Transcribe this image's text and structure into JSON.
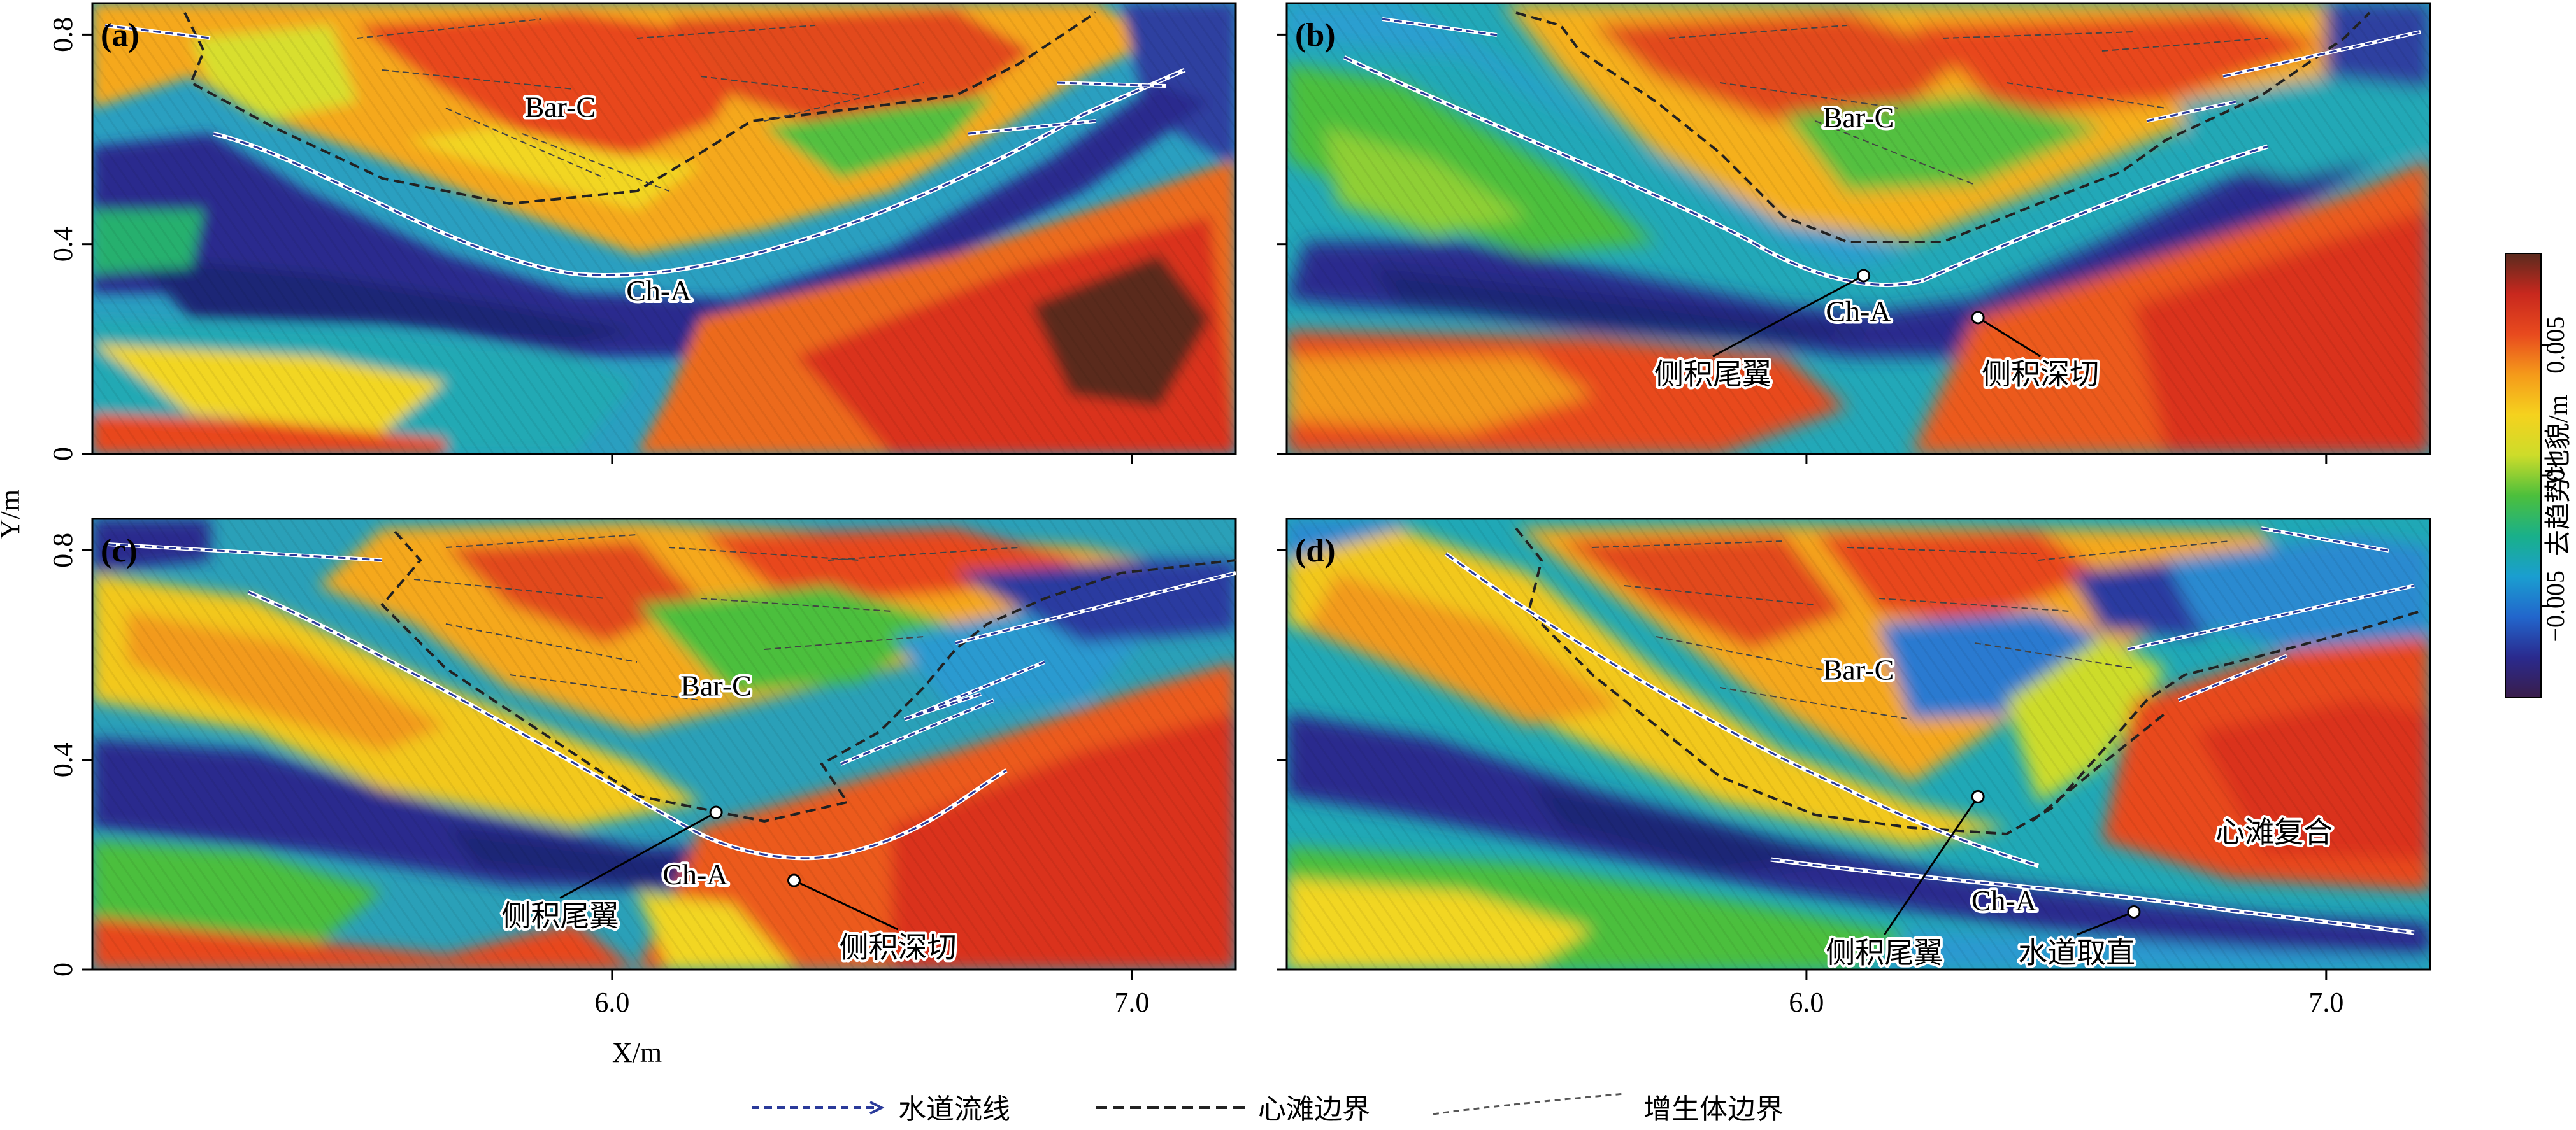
{
  "figure": {
    "x_axis_label": "X/m",
    "y_axis_label": "Y/m",
    "colorbar": {
      "label": "去趋势地貌/m",
      "ticks": [
        "0.005",
        "0",
        "−0.005"
      ],
      "tick_values": [
        0.005,
        0,
        -0.005
      ],
      "range": [
        -0.0085,
        0.0085
      ],
      "colors": [
        "#3a1d4a",
        "#2a2a8e",
        "#2266cc",
        "#1a9ed0",
        "#19b08a",
        "#4cbf3c",
        "#cddc2a",
        "#f5d21e",
        "#f59a1a",
        "#e84a1e",
        "#c8281e",
        "#5a2a1e"
      ]
    },
    "legend": [
      {
        "label": "水道流线",
        "style": "flow",
        "color": "#2a3a9a"
      },
      {
        "label": "心滩边界",
        "style": "bar-boundary",
        "color": "#222222"
      },
      {
        "label": "增生体边界",
        "style": "accretion-boundary",
        "color": "#555555"
      }
    ]
  },
  "chart_data": [
    {
      "type": "heatmap",
      "panel": "(a)",
      "x_ticks": [
        6.0,
        7.0
      ],
      "y_ticks": [
        0,
        0.4,
        0.8
      ],
      "xlim": [
        5.0,
        7.2
      ],
      "ylim": [
        0,
        0.86
      ],
      "annotations": [
        {
          "text": "Bar-C",
          "x": 5.9,
          "y": 0.66
        },
        {
          "text": "Ch-A",
          "x": 6.09,
          "y": 0.31
        }
      ]
    },
    {
      "type": "heatmap",
      "panel": "(b)",
      "x_ticks": [
        6.0,
        7.0
      ],
      "y_ticks": [
        0,
        0.4,
        0.8
      ],
      "xlim": [
        5.0,
        7.2
      ],
      "ylim": [
        0,
        0.86
      ],
      "annotations": [
        {
          "text": "Bar-C",
          "x": 6.1,
          "y": 0.64
        },
        {
          "text": "Ch-A",
          "x": 6.1,
          "y": 0.27
        },
        {
          "text": "侧积尾翼",
          "x": 5.82,
          "y": 0.15,
          "point": [
            6.11,
            0.34
          ]
        },
        {
          "text": "侧积深切",
          "x": 6.45,
          "y": 0.15,
          "point": [
            6.33,
            0.26
          ]
        }
      ]
    },
    {
      "type": "heatmap",
      "panel": "(c)",
      "x_ticks": [
        6.0,
        7.0
      ],
      "y_ticks": [
        0,
        0.4,
        0.8
      ],
      "xlim": [
        5.0,
        7.2
      ],
      "ylim": [
        0,
        0.86
      ],
      "annotations": [
        {
          "text": "Bar-C",
          "x": 6.2,
          "y": 0.54
        },
        {
          "text": "Ch-A",
          "x": 6.16,
          "y": 0.18
        },
        {
          "text": "侧积尾翼",
          "x": 5.9,
          "y": 0.1,
          "point": [
            6.2,
            0.3
          ]
        },
        {
          "text": "侧积深切",
          "x": 6.55,
          "y": 0.04,
          "point": [
            6.35,
            0.17
          ]
        }
      ]
    },
    {
      "type": "heatmap",
      "panel": "(d)",
      "x_ticks": [
        6.0,
        7.0
      ],
      "y_ticks": [
        0,
        0.4,
        0.8
      ],
      "xlim": [
        5.0,
        7.2
      ],
      "ylim": [
        0,
        0.86
      ],
      "annotations": [
        {
          "text": "Bar-C",
          "x": 6.1,
          "y": 0.57
        },
        {
          "text": "Ch-A",
          "x": 6.38,
          "y": 0.13
        },
        {
          "text": "心滩复合",
          "x": 6.9,
          "y": 0.26
        },
        {
          "text": "侧积尾翼",
          "x": 6.15,
          "y": 0.03,
          "point": [
            6.33,
            0.33
          ]
        },
        {
          "text": "水道取直",
          "x": 6.52,
          "y": 0.03,
          "point": [
            6.63,
            0.11
          ]
        }
      ]
    }
  ]
}
